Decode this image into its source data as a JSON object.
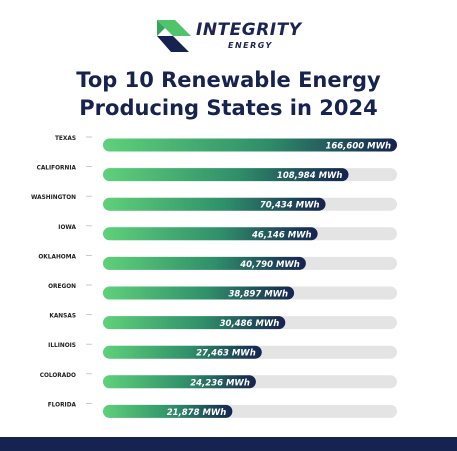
{
  "brand": {
    "name": "INTEGRITY",
    "tagline": "ENERGY"
  },
  "colors": {
    "navy": "#16224f",
    "green": "#5fd17a",
    "track": "#e4e4e4",
    "logo_green": "#4fc46b"
  },
  "chart_data": {
    "type": "bar",
    "orientation": "horizontal",
    "title": "Top 10 Renewable Energy Producing States in 2024",
    "title_lines": [
      "Top 10 Renewable Energy",
      "Producing States in 2024"
    ],
    "unit": "MWh",
    "categories": [
      "TEXAS",
      "CALIFORNIA",
      "WASHINGTON",
      "IOWA",
      "OKLAHOMA",
      "OREGON",
      "KANSAS",
      "ILLINOIS",
      "COLORADO",
      "FLORIDA"
    ],
    "values": [
      166600,
      108984,
      70434,
      46146,
      40790,
      38897,
      30486,
      27463,
      24236,
      21878
    ],
    "value_labels": [
      "166,600 MWh",
      "108,984 MWh",
      "70,434 MWh",
      "46,146 MWh",
      "40,790 MWh",
      "38,897 MWh",
      "30,486 MWh",
      "27,463 MWh",
      "24,236 MWh",
      "21,878 MWh"
    ],
    "bar_fills": [
      1.0,
      0.835,
      0.757,
      0.73,
      0.69,
      0.65,
      0.62,
      0.54,
      0.52,
      0.44
    ],
    "legend": "none",
    "grid": false
  }
}
